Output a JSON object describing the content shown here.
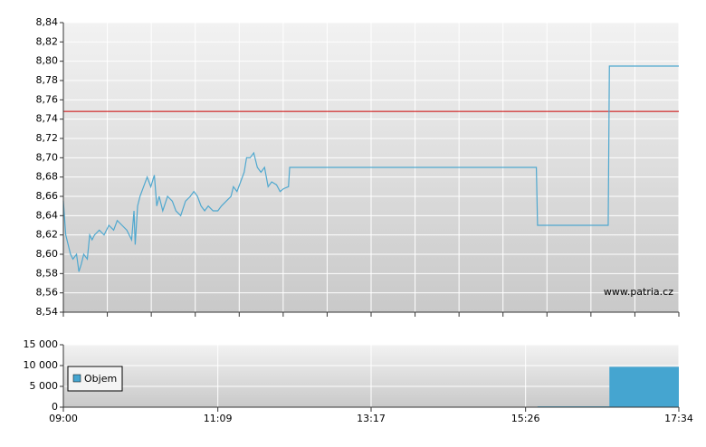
{
  "chart_data": [
    {
      "type": "line",
      "x": [
        "09:00",
        "09:02",
        "09:04",
        "09:06",
        "09:08",
        "09:11",
        "09:13",
        "09:15",
        "09:17",
        "09:20",
        "09:22",
        "09:24",
        "09:26",
        "09:30",
        "09:34",
        "09:38",
        "09:42",
        "09:45",
        "09:49",
        "09:53",
        "09:57",
        "09:59",
        "10:00",
        "10:02",
        "10:04",
        "10:07",
        "10:10",
        "10:13",
        "10:16",
        "10:18",
        "10:20",
        "10:23",
        "10:27",
        "10:31",
        "10:34",
        "10:38",
        "10:42",
        "10:46",
        "10:49",
        "10:52",
        "10:55",
        "10:58",
        "11:01",
        "11:05",
        "11:09",
        "11:12",
        "11:16",
        "11:20",
        "11:22",
        "11:25",
        "11:28",
        "11:31",
        "11:33",
        "11:36",
        "11:39",
        "11:42",
        "11:45",
        "11:48",
        "11:51",
        "11:54",
        "11:58",
        "12:01",
        "12:04",
        "12:08",
        "12:09",
        "15:35",
        "15:36",
        "16:35",
        "16:36",
        "17:34"
      ],
      "values": [
        8.655,
        8.62,
        8.61,
        8.6,
        8.595,
        8.6,
        8.582,
        8.59,
        8.6,
        8.595,
        8.62,
        8.615,
        8.62,
        8.625,
        8.62,
        8.63,
        8.625,
        8.635,
        8.63,
        8.625,
        8.615,
        8.645,
        8.61,
        8.65,
        8.66,
        8.67,
        8.68,
        8.67,
        8.682,
        8.65,
        8.66,
        8.645,
        8.66,
        8.655,
        8.645,
        8.64,
        8.655,
        8.66,
        8.665,
        8.66,
        8.65,
        8.645,
        8.65,
        8.645,
        8.645,
        8.65,
        8.655,
        8.66,
        8.67,
        8.665,
        8.675,
        8.685,
        8.7,
        8.7,
        8.705,
        8.69,
        8.685,
        8.69,
        8.67,
        8.675,
        8.672,
        8.665,
        8.668,
        8.67,
        8.69,
        8.69,
        8.63,
        8.63,
        8.795,
        8.795
      ],
      "color": "#4fa8cf",
      "xlim": [
        "09:00",
        "17:34"
      ],
      "ylim": [
        8.54,
        8.84
      ],
      "yticks": [
        {
          "value": 8.54,
          "label": "8,54"
        },
        {
          "value": 8.56,
          "label": "8,56"
        },
        {
          "value": 8.58,
          "label": "8,58"
        },
        {
          "value": 8.6,
          "label": "8,60"
        },
        {
          "value": 8.62,
          "label": "8,62"
        },
        {
          "value": 8.64,
          "label": "8,64"
        },
        {
          "value": 8.66,
          "label": "8,66"
        },
        {
          "value": 8.68,
          "label": "8,68"
        },
        {
          "value": 8.7,
          "label": "8,70"
        },
        {
          "value": 8.72,
          "label": "8,72"
        },
        {
          "value": 8.74,
          "label": "8,74"
        },
        {
          "value": 8.76,
          "label": "8,76"
        },
        {
          "value": 8.78,
          "label": "8,78"
        },
        {
          "value": 8.8,
          "label": "8,80"
        },
        {
          "value": 8.82,
          "label": "8,82"
        },
        {
          "value": 8.84,
          "label": "8,84"
        }
      ],
      "reference_line": {
        "value": 8.748,
        "color": "#cc0000"
      },
      "watermark": "www.patria.cz",
      "grid": true
    },
    {
      "type": "bar",
      "series": [
        {
          "name": "Objem",
          "color": "#45a5d0",
          "x": [
            "15:36",
            "16:36"
          ],
          "values": [
            200,
            9700
          ]
        }
      ],
      "xlim": [
        "09:00",
        "17:34"
      ],
      "xticks": [
        "09:00",
        "11:09",
        "13:17",
        "15:26",
        "17:34"
      ],
      "ylim": [
        0,
        15000
      ],
      "yticks": [
        {
          "value": 0,
          "label": "0"
        },
        {
          "value": 5000,
          "label": "5 000"
        },
        {
          "value": 10000,
          "label": "10 000"
        },
        {
          "value": 15000,
          "label": "15 000"
        }
      ],
      "grid": true
    }
  ]
}
